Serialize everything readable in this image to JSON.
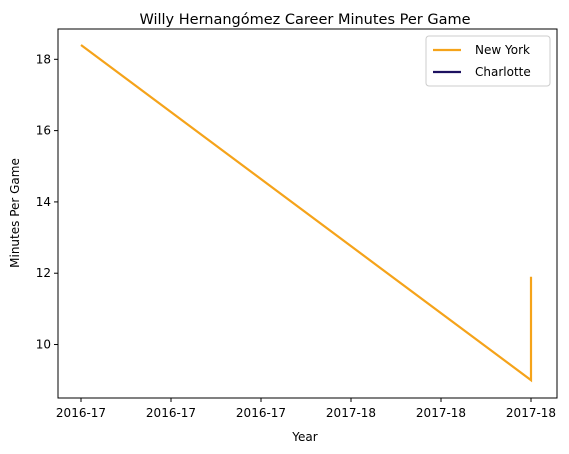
{
  "chart_data": {
    "type": "line",
    "title": "Willy Hernangómez Career Minutes Per Game",
    "xlabel": "Year",
    "ylabel": "Minutes Per Game",
    "x_tick_labels": [
      "2016-17",
      "2016-17",
      "2016-17",
      "2017-18",
      "2017-18",
      "2017-18"
    ],
    "x_range": [
      0,
      1
    ],
    "ylim": [
      8.5,
      18.85
    ],
    "y_ticks": [
      10,
      12,
      14,
      16,
      18
    ],
    "grid": false,
    "legend_placement": "top-right",
    "series": [
      {
        "name": "New York",
        "color": "#f5a31a",
        "points": [
          {
            "x": 0,
            "y": 18.4
          },
          {
            "x": 1,
            "y": 9.0
          },
          {
            "x": 1,
            "y": 11.9
          }
        ]
      },
      {
        "name": "Charlotte",
        "color": "#1d1160",
        "points": []
      }
    ]
  }
}
